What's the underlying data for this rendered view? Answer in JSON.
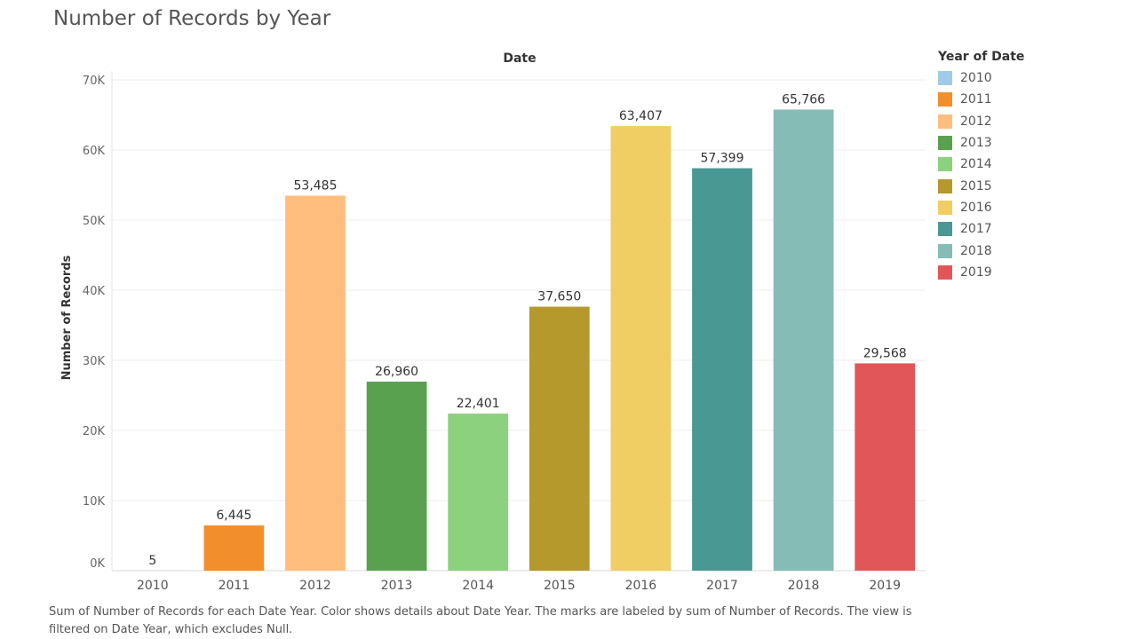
{
  "title": "Number of Records by Year",
  "footer": "Sum of Number of Records for each Date Year.  Color shows details about Date Year.  The marks are labeled by sum of Number of Records. The view is filtered on Date Year, which excludes Null.",
  "legend": {
    "title": "Year of Date",
    "items": [
      {
        "label": "2010",
        "color": "#A0CBE8"
      },
      {
        "label": "2011",
        "color": "#F28E2B"
      },
      {
        "label": "2012",
        "color": "#FFBE7D"
      },
      {
        "label": "2013",
        "color": "#59A14F"
      },
      {
        "label": "2014",
        "color": "#8CD17D"
      },
      {
        "label": "2015",
        "color": "#B6992D"
      },
      {
        "label": "2016",
        "color": "#F1CE63"
      },
      {
        "label": "2017",
        "color": "#499894"
      },
      {
        "label": "2018",
        "color": "#86BCB6"
      },
      {
        "label": "2019",
        "color": "#E15759"
      }
    ]
  },
  "chart_data": {
    "type": "bar",
    "title": "Number of Records by Year",
    "xlabel": "Date",
    "ylabel": "Number of Records",
    "categories": [
      "2010",
      "2011",
      "2012",
      "2013",
      "2014",
      "2015",
      "2016",
      "2017",
      "2018",
      "2019"
    ],
    "values": [
      5,
      6445,
      53485,
      26960,
      22401,
      37650,
      63407,
      57399,
      65766,
      29568
    ],
    "value_labels": [
      "5",
      "6,445",
      "53,485",
      "26,960",
      "22,401",
      "37,650",
      "63,407",
      "57,399",
      "65,766",
      "29,568"
    ],
    "colors": [
      "#A0CBE8",
      "#F28E2B",
      "#FFBE7D",
      "#59A14F",
      "#8CD17D",
      "#B6992D",
      "#F1CE63",
      "#499894",
      "#86BCB6",
      "#E15759"
    ],
    "ylim": [
      0,
      70000
    ],
    "yticks": [
      0,
      10000,
      20000,
      30000,
      40000,
      50000,
      60000,
      70000
    ],
    "ytick_labels": [
      "0K",
      "10K",
      "20K",
      "30K",
      "40K",
      "50K",
      "60K",
      "70K"
    ],
    "grid": true,
    "legend_position": "right"
  }
}
